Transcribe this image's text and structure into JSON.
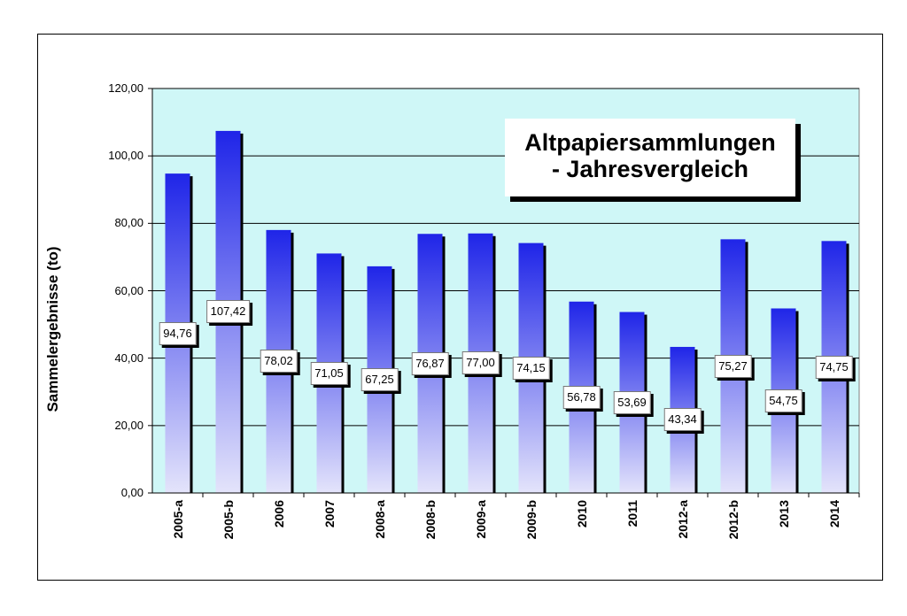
{
  "chart_data": {
    "type": "bar",
    "title": "Altpapiersammlungen - Jahresvergleich",
    "title_lines": [
      "Altpapiersammlungen",
      "- Jahresvergleich"
    ],
    "xlabel": "",
    "ylabel": "Sammelergebnisse (to)",
    "ylim": [
      0,
      120
    ],
    "yticks": [
      "0,00",
      "20,00",
      "40,00",
      "60,00",
      "80,00",
      "100,00",
      "120,00"
    ],
    "categories": [
      "2005-a",
      "2005-b",
      "2006",
      "2007",
      "2008-a",
      "2008-b",
      "2009-a",
      "2009-b",
      "2010",
      "2011",
      "2012-a",
      "2012-b",
      "2013",
      "2014"
    ],
    "values": [
      94.76,
      107.42,
      78.02,
      71.05,
      67.25,
      76.87,
      77.0,
      74.15,
      56.78,
      53.69,
      43.34,
      75.27,
      54.75,
      74.75
    ],
    "value_labels": [
      "94,76",
      "107,42",
      "78,02",
      "71,05",
      "67,25",
      "76,87",
      "77,00",
      "74,15",
      "56,78",
      "53,69",
      "43,34",
      "75,27",
      "54,75",
      "74,75"
    ],
    "grid": true,
    "legend": "none",
    "colors": {
      "plot_background": "#cff7f7",
      "bar_top": "#1f25e8",
      "bar_bottom": "#e4e4fb"
    }
  }
}
